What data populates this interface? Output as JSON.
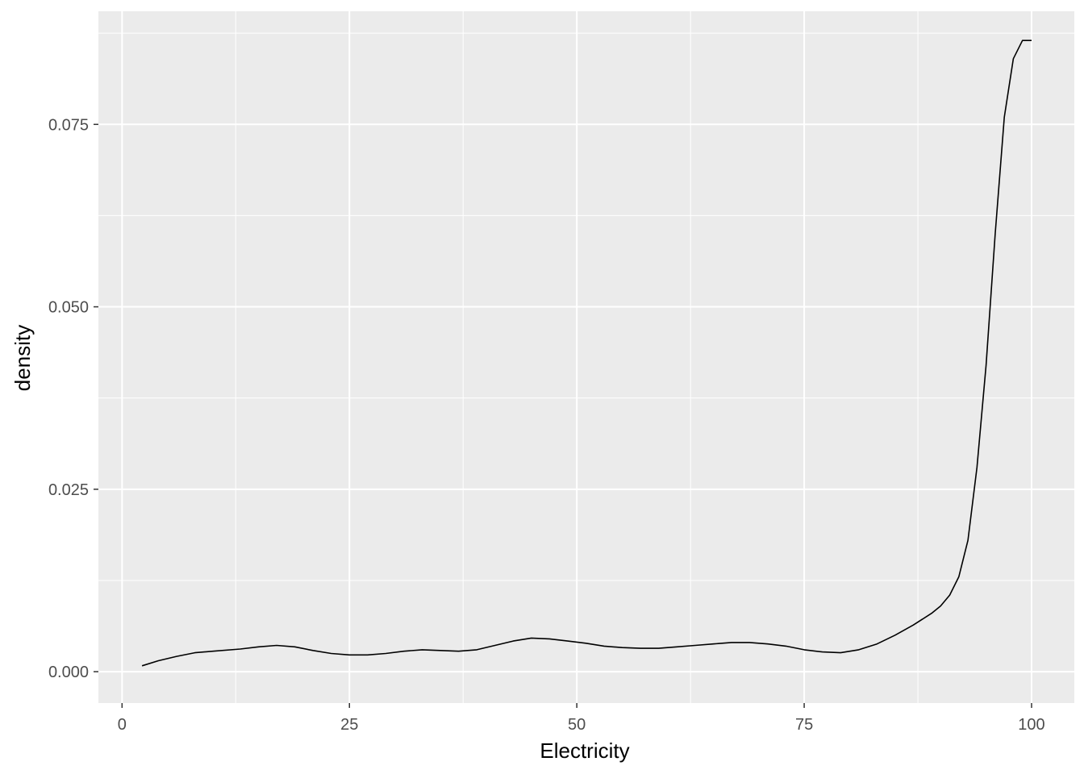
{
  "chart_data": {
    "type": "line",
    "xlabel": "Electricity",
    "ylabel": "density",
    "xlim": [
      -2.6,
      104.7
    ],
    "ylim": [
      -0.0043,
      0.0905
    ],
    "x_ticks": [
      0,
      25,
      50,
      75,
      100
    ],
    "x_tick_labels": [
      "0",
      "25",
      "50",
      "75",
      "100"
    ],
    "y_ticks": [
      0.0,
      0.025,
      0.05,
      0.075
    ],
    "y_tick_labels": [
      "0.000",
      "0.025",
      "0.050",
      "0.075"
    ],
    "grid": true,
    "colors": {
      "panel": "#ebebeb",
      "grid": "#ffffff",
      "line": "#000000"
    },
    "series": [
      {
        "x": [
          2.2,
          4,
          6,
          8,
          10,
          13,
          15,
          17,
          19,
          21,
          23,
          25,
          27,
          29,
          31,
          33,
          35,
          37,
          39,
          41,
          43,
          45,
          47,
          49,
          51,
          53,
          55,
          57,
          59,
          61,
          63,
          65,
          67,
          69,
          71,
          73,
          75,
          77,
          79,
          81,
          83,
          85,
          87,
          89,
          90,
          91,
          92,
          93,
          94,
          95,
          96,
          97,
          98,
          99,
          100
        ],
        "y": [
          0.0008,
          0.0015,
          0.0021,
          0.0026,
          0.0028,
          0.0031,
          0.0034,
          0.0036,
          0.0034,
          0.0029,
          0.0025,
          0.0023,
          0.0023,
          0.0025,
          0.0028,
          0.003,
          0.0029,
          0.0028,
          0.003,
          0.0036,
          0.0042,
          0.0046,
          0.0045,
          0.0042,
          0.0039,
          0.0035,
          0.0033,
          0.0032,
          0.0032,
          0.0034,
          0.0036,
          0.0038,
          0.004,
          0.004,
          0.0038,
          0.0035,
          0.003,
          0.0027,
          0.0026,
          0.003,
          0.0038,
          0.005,
          0.0064,
          0.008,
          0.009,
          0.0105,
          0.013,
          0.018,
          0.028,
          0.042,
          0.06,
          0.076,
          0.084,
          0.0865,
          0.0865
        ]
      }
    ]
  }
}
